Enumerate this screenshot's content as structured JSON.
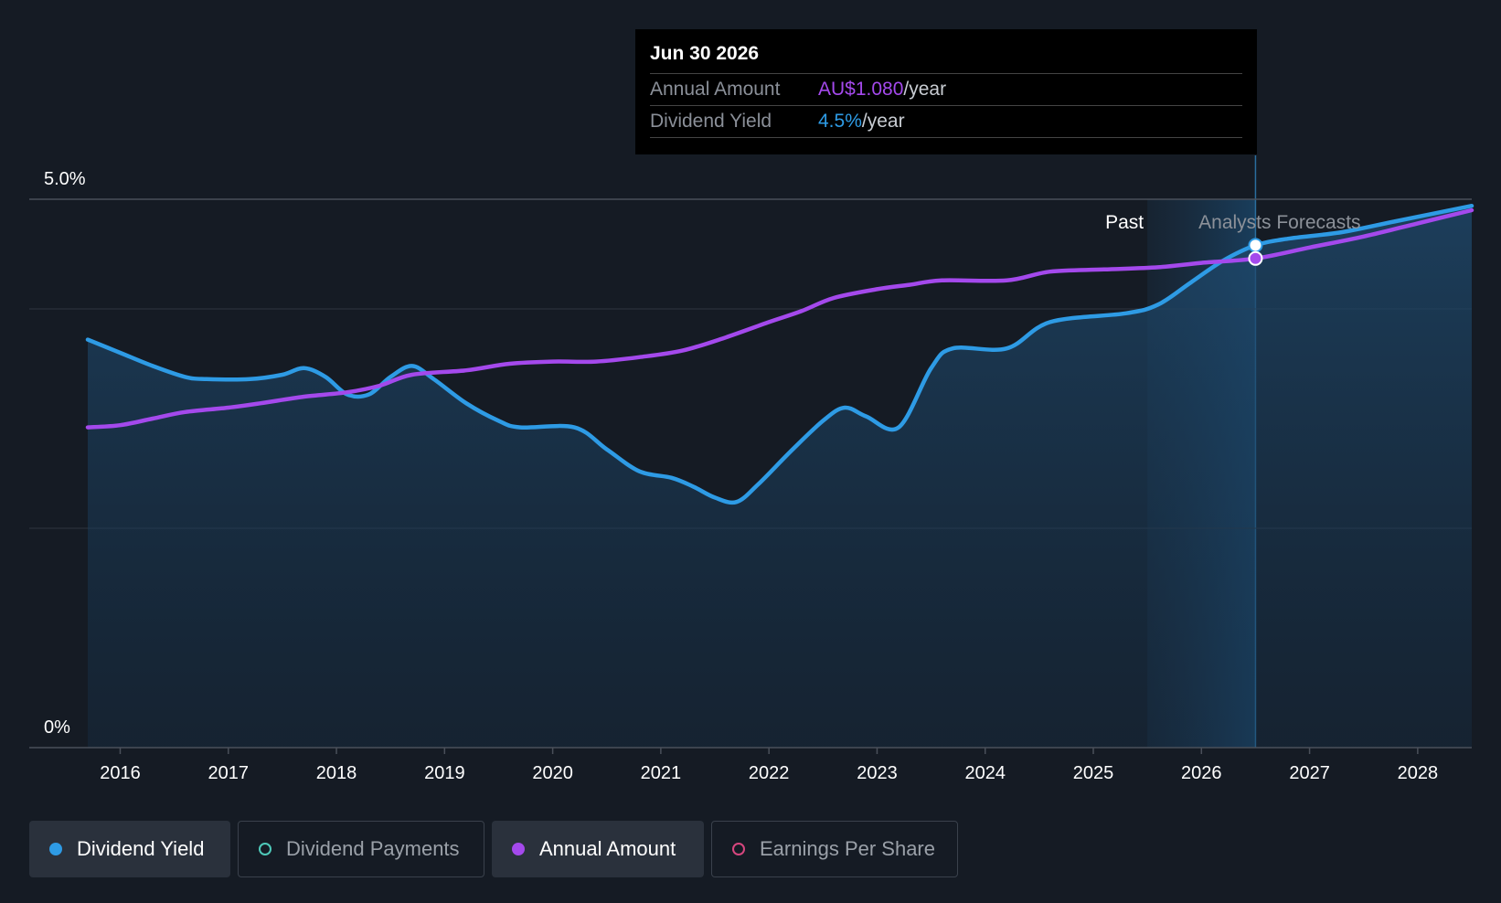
{
  "tooltip": {
    "date": "Jun 30 2026",
    "rows": [
      {
        "label": "Annual Amount",
        "value": "AU$1.080",
        "suffix": "/year",
        "color": "#a449ec"
      },
      {
        "label": "Dividend Yield",
        "value": "4.5%",
        "suffix": "/year",
        "color": "#2e9be5"
      }
    ]
  },
  "legend": [
    {
      "label": "Dividend Yield",
      "color": "#2e9be5",
      "active": true
    },
    {
      "label": "Dividend Payments",
      "color": "#4ec9b9",
      "active": false
    },
    {
      "label": "Annual Amount",
      "color": "#a449ec",
      "active": true
    },
    {
      "label": "Earnings Per Share",
      "color": "#d6467e",
      "active": false
    }
  ],
  "chart_data": {
    "type": "line",
    "y_tick_labels": [
      "5.0%",
      "0%"
    ],
    "ylim": [
      0,
      5.0
    ],
    "x_tick_labels": [
      "2016",
      "2017",
      "2018",
      "2019",
      "2020",
      "2021",
      "2022",
      "2023",
      "2024",
      "2025",
      "2026",
      "2027",
      "2028"
    ],
    "xlim": [
      2015.7,
      2028.5
    ],
    "region_labels": {
      "past": "Past",
      "forecast": "Analysts Forecasts"
    },
    "forecast_start": 2025.5,
    "highlight_x": 2026.5,
    "grid": true,
    "series": [
      {
        "name": "Dividend Yield",
        "color": "#2e9be5",
        "area": true,
        "points": [
          [
            2015.7,
            3.72
          ],
          [
            2016.0,
            3.6
          ],
          [
            2016.3,
            3.48
          ],
          [
            2016.6,
            3.38
          ],
          [
            2016.8,
            3.36
          ],
          [
            2017.2,
            3.36
          ],
          [
            2017.5,
            3.4
          ],
          [
            2017.7,
            3.46
          ],
          [
            2017.9,
            3.38
          ],
          [
            2018.1,
            3.22
          ],
          [
            2018.3,
            3.22
          ],
          [
            2018.5,
            3.38
          ],
          [
            2018.7,
            3.48
          ],
          [
            2018.9,
            3.36
          ],
          [
            2019.2,
            3.14
          ],
          [
            2019.5,
            2.98
          ],
          [
            2019.7,
            2.92
          ],
          [
            2020.2,
            2.92
          ],
          [
            2020.5,
            2.72
          ],
          [
            2020.8,
            2.52
          ],
          [
            2021.1,
            2.46
          ],
          [
            2021.3,
            2.38
          ],
          [
            2021.5,
            2.28
          ],
          [
            2021.7,
            2.24
          ],
          [
            2021.9,
            2.4
          ],
          [
            2022.2,
            2.7
          ],
          [
            2022.5,
            2.98
          ],
          [
            2022.7,
            3.1
          ],
          [
            2022.9,
            3.02
          ],
          [
            2023.2,
            2.92
          ],
          [
            2023.5,
            3.46
          ],
          [
            2023.7,
            3.64
          ],
          [
            2024.2,
            3.64
          ],
          [
            2024.6,
            3.88
          ],
          [
            2025.3,
            3.96
          ],
          [
            2025.6,
            4.04
          ],
          [
            2025.9,
            4.24
          ],
          [
            2026.2,
            4.44
          ],
          [
            2026.5,
            4.58
          ],
          [
            2026.8,
            4.64
          ],
          [
            2027.3,
            4.7
          ],
          [
            2027.8,
            4.8
          ],
          [
            2028.5,
            4.94
          ]
        ]
      },
      {
        "name": "Annual Amount",
        "color": "#a449ec",
        "area": false,
        "points": [
          [
            2015.7,
            2.92
          ],
          [
            2016.0,
            2.94
          ],
          [
            2016.3,
            3.0
          ],
          [
            2016.6,
            3.06
          ],
          [
            2017.0,
            3.1
          ],
          [
            2017.3,
            3.14
          ],
          [
            2017.7,
            3.2
          ],
          [
            2018.1,
            3.24
          ],
          [
            2018.4,
            3.3
          ],
          [
            2018.7,
            3.4
          ],
          [
            2019.2,
            3.44
          ],
          [
            2019.6,
            3.5
          ],
          [
            2020.0,
            3.52
          ],
          [
            2020.4,
            3.52
          ],
          [
            2020.8,
            3.56
          ],
          [
            2021.2,
            3.62
          ],
          [
            2021.6,
            3.74
          ],
          [
            2022.0,
            3.88
          ],
          [
            2022.3,
            3.98
          ],
          [
            2022.6,
            4.1
          ],
          [
            2023.0,
            4.18
          ],
          [
            2023.3,
            4.22
          ],
          [
            2023.6,
            4.26
          ],
          [
            2024.2,
            4.26
          ],
          [
            2024.6,
            4.34
          ],
          [
            2025.1,
            4.36
          ],
          [
            2025.6,
            4.38
          ],
          [
            2026.0,
            4.42
          ],
          [
            2026.5,
            4.46
          ],
          [
            2027.0,
            4.56
          ],
          [
            2027.5,
            4.66
          ],
          [
            2028.0,
            4.78
          ],
          [
            2028.5,
            4.9
          ]
        ]
      }
    ]
  }
}
